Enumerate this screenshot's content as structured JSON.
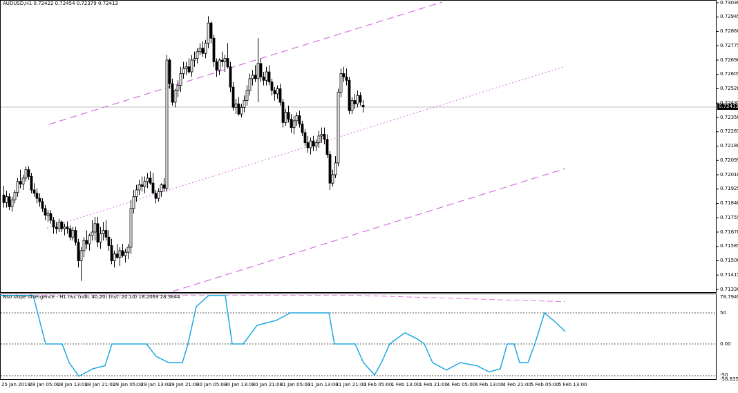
{
  "main_panel": {
    "title": "AUDUSD,H1  0.72422 0.72454 0.72379 0.72413",
    "current_price": "0.72413",
    "price_axis": [
      "0.73030",
      "0.72945",
      "0.72860",
      "0.72775",
      "0.72690",
      "0.72605",
      "0.72520",
      "0.72435",
      "0.72350",
      "0.72265",
      "0.72180",
      "0.72095",
      "0.72010",
      "0.71925",
      "0.71840",
      "0.71755",
      "0.71670",
      "0.71585",
      "0.71500",
      "0.71415",
      "0.71330"
    ]
  },
  "indicator_panel": {
    "title": "Nso slope divergence - H1 nvc (ndic 40.20) (nst: 20.10) 18.2069 28.3844",
    "axis": {
      "top": "78.7949",
      "upper": "50",
      "mid": "0.00",
      "lower": "-50",
      "bottom": "-58.8351"
    },
    "line_color": "#1ca8e3",
    "signal_color": "#e07be0"
  },
  "time_axis": [
    "25 Jan 2019",
    "28 Jan 05:00",
    "28 Jan 13:00",
    "28 Jan 21:00",
    "29 Jan 05:00",
    "29 Jan 13:00",
    "29 Jan 21:00",
    "30 Jan 05:00",
    "30 Jan 13:00",
    "30 Jan 21:00",
    "31 Jan 05:00",
    "31 Jan 13:00",
    "31 Jan 21:00",
    "1 Feb 05:00",
    "1 Feb 13:00",
    "1 Feb 21:00",
    "4 Feb 05:00",
    "4 Feb 13:00",
    "4 Feb 21:00",
    "5 Feb 05:00",
    "5 Feb 13:00"
  ],
  "colors": {
    "bull": "#ffffff",
    "bear": "#000000",
    "channel": "#d36ee0",
    "grid": "#c0c0c0"
  },
  "candles": [
    [
      0.7189,
      0.71945,
      0.71815,
      0.71845
    ],
    [
      0.71845,
      0.71915,
      0.71815,
      0.7188
    ],
    [
      0.7188,
      0.719,
      0.718,
      0.7182
    ],
    [
      0.7182,
      0.7188,
      0.7179,
      0.7186
    ],
    [
      0.7186,
      0.7192,
      0.7184,
      0.71905
    ],
    [
      0.71905,
      0.7199,
      0.7188,
      0.7197
    ],
    [
      0.7197,
      0.7204,
      0.7193,
      0.71955
    ],
    [
      0.71955,
      0.7201,
      0.7192,
      0.7199
    ],
    [
      0.7199,
      0.7206,
      0.7197,
      0.7204
    ],
    [
      0.7204,
      0.7206,
      0.7198,
      0.72
    ],
    [
      0.72,
      0.7202,
      0.719,
      0.7192
    ],
    [
      0.7192,
      0.7196,
      0.7188,
      0.719
    ],
    [
      0.719,
      0.7193,
      0.7184,
      0.7187
    ],
    [
      0.7187,
      0.719,
      0.7182,
      0.7185
    ],
    [
      0.7185,
      0.7187,
      0.7179,
      0.7181
    ],
    [
      0.7181,
      0.7183,
      0.7174,
      0.7177
    ],
    [
      0.7177,
      0.718,
      0.7173,
      0.7178
    ],
    [
      0.7178,
      0.718,
      0.7172,
      0.7174
    ],
    [
      0.7174,
      0.7176,
      0.7166,
      0.717
    ],
    [
      0.717,
      0.7173,
      0.7166,
      0.7169
    ],
    [
      0.7169,
      0.7175,
      0.7167,
      0.7173
    ],
    [
      0.7173,
      0.7174,
      0.7167,
      0.7169
    ],
    [
      0.7169,
      0.7172,
      0.7165,
      0.717
    ],
    [
      0.717,
      0.7173,
      0.7166,
      0.7169
    ],
    [
      0.7169,
      0.7171,
      0.7162,
      0.7164
    ],
    [
      0.7164,
      0.717,
      0.7162,
      0.7168
    ],
    [
      0.7168,
      0.717,
      0.7159,
      0.7161
    ],
    [
      0.7161,
      0.7163,
      0.7146,
      0.715
    ],
    [
      0.715,
      0.7158,
      0.7138,
      0.7156
    ],
    [
      0.7156,
      0.7164,
      0.7152,
      0.7162
    ],
    [
      0.7162,
      0.7168,
      0.7157,
      0.716
    ],
    [
      0.716,
      0.7166,
      0.7156,
      0.7165
    ],
    [
      0.7165,
      0.7174,
      0.7162,
      0.7167
    ],
    [
      0.7167,
      0.7176,
      0.7162,
      0.7172
    ],
    [
      0.7172,
      0.7176,
      0.7158,
      0.7161
    ],
    [
      0.7161,
      0.717,
      0.7157,
      0.7166
    ],
    [
      0.7166,
      0.7173,
      0.7162,
      0.7168
    ],
    [
      0.7168,
      0.7174,
      0.7162,
      0.7164
    ],
    [
      0.7164,
      0.7168,
      0.7156,
      0.7159
    ],
    [
      0.7159,
      0.7163,
      0.7148,
      0.715
    ],
    [
      0.715,
      0.7156,
      0.7146,
      0.7154
    ],
    [
      0.7154,
      0.716,
      0.7151,
      0.7152
    ],
    [
      0.7152,
      0.7158,
      0.7147,
      0.7156
    ],
    [
      0.7156,
      0.716,
      0.7152,
      0.7153
    ],
    [
      0.7153,
      0.7157,
      0.7149,
      0.7155
    ],
    [
      0.7155,
      0.716,
      0.7151,
      0.7158
    ],
    [
      0.7158,
      0.7186,
      0.7154,
      0.7181
    ],
    [
      0.7181,
      0.7192,
      0.7178,
      0.7188
    ],
    [
      0.7188,
      0.7195,
      0.7185,
      0.7192
    ],
    [
      0.7192,
      0.7198,
      0.7189,
      0.7195
    ],
    [
      0.7195,
      0.72,
      0.7191,
      0.7194
    ],
    [
      0.7194,
      0.72,
      0.719,
      0.7197
    ],
    [
      0.7197,
      0.7202,
      0.7193,
      0.7199
    ],
    [
      0.7199,
      0.7203,
      0.7195,
      0.7196
    ],
    [
      0.7196,
      0.7202,
      0.719,
      0.719
    ],
    [
      0.719,
      0.7192,
      0.7184,
      0.7187
    ],
    [
      0.7187,
      0.7193,
      0.7185,
      0.7191
    ],
    [
      0.7191,
      0.7196,
      0.7188,
      0.7195
    ],
    [
      0.7195,
      0.7199,
      0.7191,
      0.7193
    ],
    [
      0.7193,
      0.7272,
      0.7191,
      0.7269
    ],
    [
      0.7269,
      0.727,
      0.7252,
      0.7255
    ],
    [
      0.7255,
      0.7258,
      0.7242,
      0.7244
    ],
    [
      0.7244,
      0.7252,
      0.7241,
      0.7251
    ],
    [
      0.7251,
      0.7257,
      0.7247,
      0.7254
    ],
    [
      0.7254,
      0.7265,
      0.725,
      0.7261
    ],
    [
      0.7261,
      0.7268,
      0.7258,
      0.7264
    ],
    [
      0.7264,
      0.7268,
      0.726,
      0.7265
    ],
    [
      0.7265,
      0.727,
      0.7261,
      0.7262
    ],
    [
      0.7262,
      0.7272,
      0.7259,
      0.7269
    ],
    [
      0.7269,
      0.7274,
      0.7265,
      0.727
    ],
    [
      0.727,
      0.7276,
      0.7267,
      0.7274
    ],
    [
      0.7274,
      0.7279,
      0.7272,
      0.7276
    ],
    [
      0.7276,
      0.728,
      0.7271,
      0.7273
    ],
    [
      0.7273,
      0.7281,
      0.727,
      0.7279
    ],
    [
      0.7279,
      0.7295,
      0.7276,
      0.7291
    ],
    [
      0.7291,
      0.7292,
      0.7279,
      0.7282
    ],
    [
      0.7282,
      0.7284,
      0.7265,
      0.7268
    ],
    [
      0.7268,
      0.727,
      0.7259,
      0.7263
    ],
    [
      0.7263,
      0.727,
      0.726,
      0.7269
    ],
    [
      0.7269,
      0.7274,
      0.7265,
      0.7268
    ],
    [
      0.7268,
      0.7272,
      0.7262,
      0.727
    ],
    [
      0.727,
      0.7279,
      0.7264,
      0.7265
    ],
    [
      0.7265,
      0.7268,
      0.725,
      0.7253
    ],
    [
      0.7253,
      0.7256,
      0.7239,
      0.7241
    ],
    [
      0.7241,
      0.7246,
      0.7237,
      0.7243
    ],
    [
      0.7243,
      0.7247,
      0.7236,
      0.7237
    ],
    [
      0.7237,
      0.7243,
      0.7235,
      0.7241
    ],
    [
      0.7241,
      0.7248,
      0.7238,
      0.7245
    ],
    [
      0.7245,
      0.7254,
      0.7242,
      0.7251
    ],
    [
      0.7251,
      0.7261,
      0.7248,
      0.7258
    ],
    [
      0.7258,
      0.7263,
      0.7254,
      0.726
    ],
    [
      0.726,
      0.7266,
      0.7256,
      0.7258
    ],
    [
      0.7258,
      0.7282,
      0.7244,
      0.7267
    ],
    [
      0.7267,
      0.727,
      0.7256,
      0.7259
    ],
    [
      0.7259,
      0.7262,
      0.7254,
      0.7257
    ],
    [
      0.7257,
      0.7265,
      0.7254,
      0.7262
    ],
    [
      0.7262,
      0.7266,
      0.7254,
      0.7256
    ],
    [
      0.7256,
      0.7258,
      0.7248,
      0.7251
    ],
    [
      0.7251,
      0.7253,
      0.7245,
      0.7249
    ],
    [
      0.7249,
      0.7254,
      0.7246,
      0.7252
    ],
    [
      0.7252,
      0.7255,
      0.7242,
      0.7244
    ],
    [
      0.7244,
      0.7246,
      0.7229,
      0.7232
    ],
    [
      0.7232,
      0.724,
      0.723,
      0.7238
    ],
    [
      0.7238,
      0.7242,
      0.7232,
      0.7234
    ],
    [
      0.7234,
      0.7237,
      0.7226,
      0.7229
    ],
    [
      0.7229,
      0.7236,
      0.7225,
      0.7233
    ],
    [
      0.7233,
      0.7238,
      0.723,
      0.7236
    ],
    [
      0.7236,
      0.7239,
      0.7229,
      0.7231
    ],
    [
      0.7231,
      0.7233,
      0.7224,
      0.7226
    ],
    [
      0.7226,
      0.7228,
      0.7218,
      0.722
    ],
    [
      0.722,
      0.7224,
      0.7214,
      0.7217
    ],
    [
      0.7217,
      0.7223,
      0.7213,
      0.7221
    ],
    [
      0.7221,
      0.7224,
      0.7215,
      0.7218
    ],
    [
      0.7218,
      0.7222,
      0.7215,
      0.722
    ],
    [
      0.722,
      0.7227,
      0.7217,
      0.7224
    ],
    [
      0.7224,
      0.7229,
      0.722,
      0.7225
    ],
    [
      0.7225,
      0.7229,
      0.7219,
      0.7222
    ],
    [
      0.7222,
      0.7225,
      0.7211,
      0.7213
    ],
    [
      0.7213,
      0.7215,
      0.7192,
      0.7196
    ],
    [
      0.7196,
      0.7204,
      0.7194,
      0.7201
    ],
    [
      0.7201,
      0.7212,
      0.7199,
      0.7208
    ],
    [
      0.7208,
      0.7252,
      0.7206,
      0.725
    ],
    [
      0.725,
      0.7264,
      0.7247,
      0.7261
    ],
    [
      0.7261,
      0.7265,
      0.7256,
      0.7259
    ],
    [
      0.7259,
      0.7264,
      0.7254,
      0.7257
    ],
    [
      0.7257,
      0.7259,
      0.7237,
      0.7239
    ],
    [
      0.7239,
      0.7247,
      0.7237,
      0.7245
    ],
    [
      0.7245,
      0.7249,
      0.724,
      0.7243
    ],
    [
      0.7243,
      0.7251,
      0.7241,
      0.7248
    ],
    [
      0.7248,
      0.725,
      0.7242,
      0.7244
    ],
    [
      0.72422,
      0.72454,
      0.72379,
      0.72413
    ]
  ],
  "nso_line": [
    [
      0,
      78
    ],
    [
      48,
      78
    ],
    [
      66,
      0
    ],
    [
      90,
      0
    ],
    [
      100,
      -30
    ],
    [
      114,
      -52
    ],
    [
      126,
      -45
    ],
    [
      134,
      -40
    ],
    [
      152,
      -35
    ],
    [
      162,
      0
    ],
    [
      212,
      0
    ],
    [
      226,
      -20
    ],
    [
      244,
      -30
    ],
    [
      264,
      -30
    ],
    [
      272,
      0
    ],
    [
      284,
      60
    ],
    [
      302,
      78
    ],
    [
      326,
      78
    ],
    [
      336,
      0
    ],
    [
      352,
      0
    ],
    [
      372,
      30
    ],
    [
      400,
      38
    ],
    [
      420,
      50
    ],
    [
      460,
      50
    ],
    [
      476,
      50
    ],
    [
      484,
      0
    ],
    [
      514,
      0
    ],
    [
      526,
      -30
    ],
    [
      542,
      -50
    ],
    [
      552,
      -30
    ],
    [
      564,
      0
    ],
    [
      576,
      10
    ],
    [
      586,
      18
    ],
    [
      604,
      8
    ],
    [
      614,
      0
    ],
    [
      626,
      -30
    ],
    [
      646,
      -42
    ],
    [
      666,
      -30
    ],
    [
      690,
      -35
    ],
    [
      708,
      -45
    ],
    [
      724,
      -40
    ],
    [
      734,
      0
    ],
    [
      744,
      0
    ],
    [
      752,
      -30
    ],
    [
      764,
      -30
    ],
    [
      774,
      0
    ],
    [
      788,
      50
    ],
    [
      804,
      35
    ],
    [
      818,
      20
    ]
  ],
  "nso_signal": [
    [
      0,
      78
    ],
    [
      250,
      78
    ],
    [
      520,
      78
    ],
    [
      818,
      68
    ]
  ]
}
